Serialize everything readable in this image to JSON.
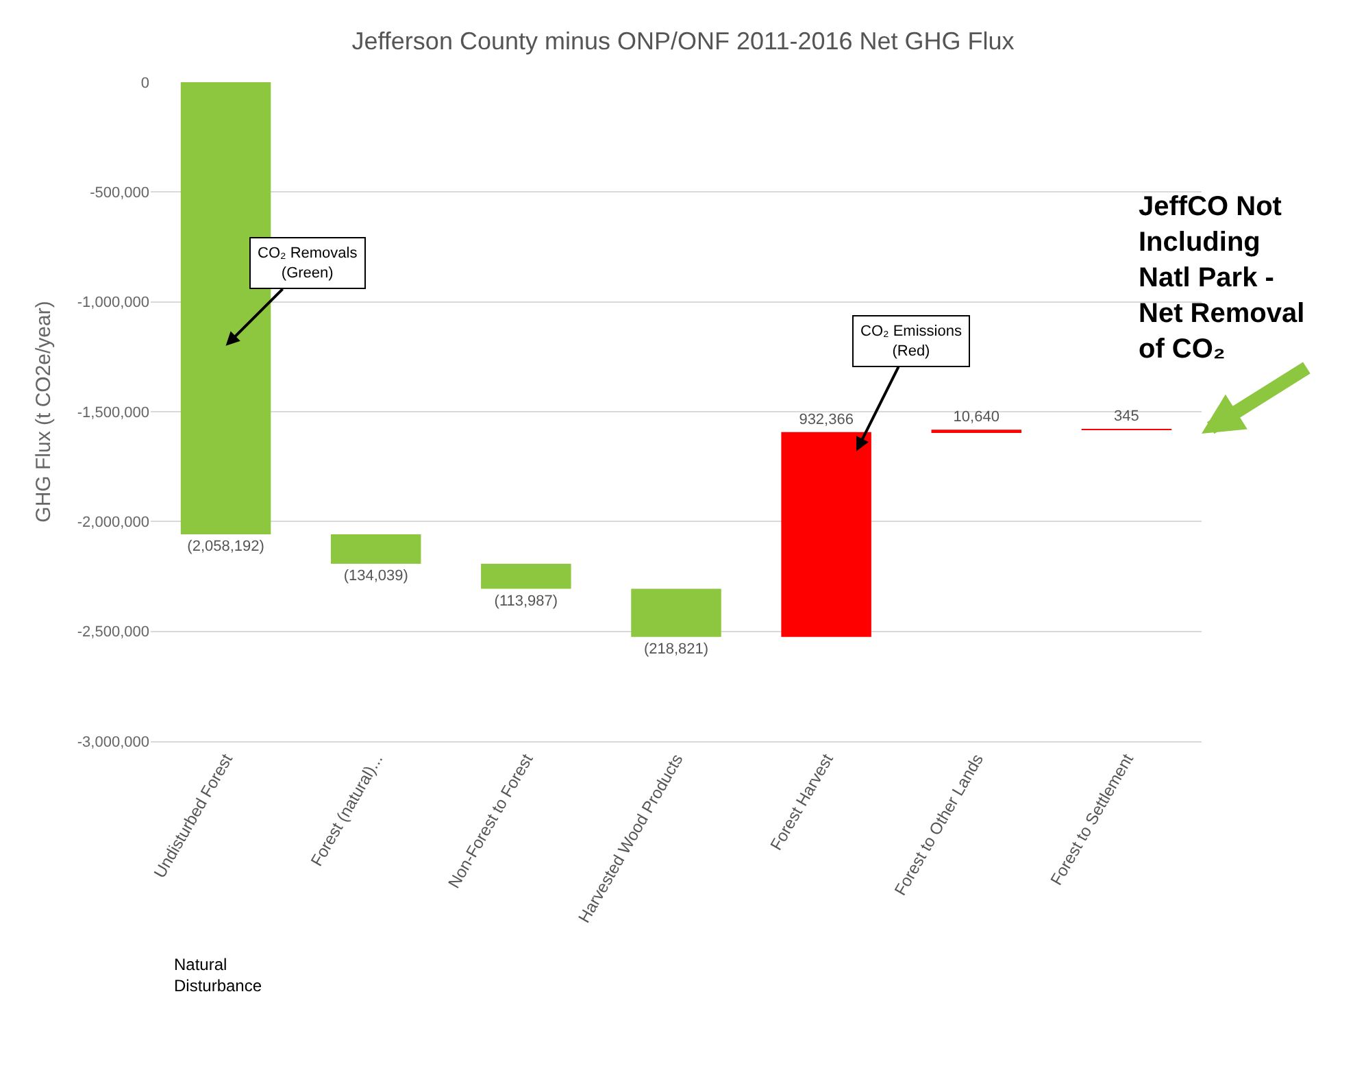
{
  "chart_data": {
    "type": "bar",
    "title": "Jefferson County minus ONP/ONF 2011-2016 Net GHG Flux",
    "ylabel": "GHG Flux (t CO2e/year)",
    "categories": [
      "Undisturbed Forest",
      "Forest (natural)...",
      "Non-Forest to Forest",
      "Harvested Wood Products",
      "Forest Harvest",
      "Forest to Other Lands",
      "Forest to Settlement"
    ],
    "values": [
      -2058192,
      -134039,
      -113987,
      -218821,
      932366,
      10640,
      345
    ],
    "base": [
      0,
      -2058192,
      -2192231,
      -2306218,
      -2525039,
      -1592673,
      -1582033
    ],
    "colors": [
      "#8dc63f",
      "#8dc63f",
      "#8dc63f",
      "#8dc63f",
      "#ff0000",
      "#ff0000",
      "#ff0000"
    ],
    "value_labels": [
      "(2,058,192)",
      "(134,039)",
      "(113,987)",
      "(218,821)",
      "932,366",
      "10,640",
      "345"
    ],
    "ylim": [
      -3000000,
      0
    ],
    "yticks": [
      0,
      {
        "value": -500000,
        "label": "-500,000"
      },
      {
        "value": -1000000,
        "label": "-1,000,000"
      },
      {
        "value": -1500000,
        "label": "-1,500,000"
      },
      {
        "value": -2000000,
        "label": "-2,000,000"
      },
      {
        "value": -2500000,
        "label": "-2,500,000"
      },
      {
        "value": -3000000,
        "label": "-3,000,000"
      }
    ],
    "grid": "y",
    "annotations": [
      "CO₂ Removals\n(Green)",
      "CO₂ Emissions\n(Red)",
      "JeffCO Not\nIncluding\nNatl Park -\nNet Removal\nof CO₂",
      "Natural\nDisturbance"
    ]
  }
}
